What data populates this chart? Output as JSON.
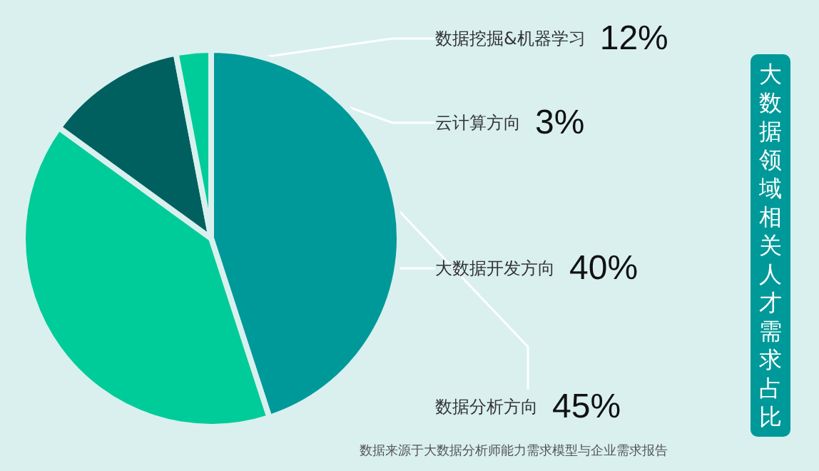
{
  "chart_data": {
    "type": "pie",
    "title": "大数据领域相关人才需求占比",
    "categories": [
      "数据分析方向",
      "大数据开发方向",
      "数据挖掘&机器学习",
      "云计算方向"
    ],
    "values": [
      45,
      40,
      12,
      3
    ],
    "colors": [
      "#009999",
      "#00cc99",
      "#006060",
      "#00cc99"
    ],
    "value_labels": [
      "45%",
      "40%",
      "12%",
      "3%"
    ],
    "legend": false,
    "annotations": [
      "数据来源于大数据分析师能力需求模型与企业需求报告"
    ]
  }
}
